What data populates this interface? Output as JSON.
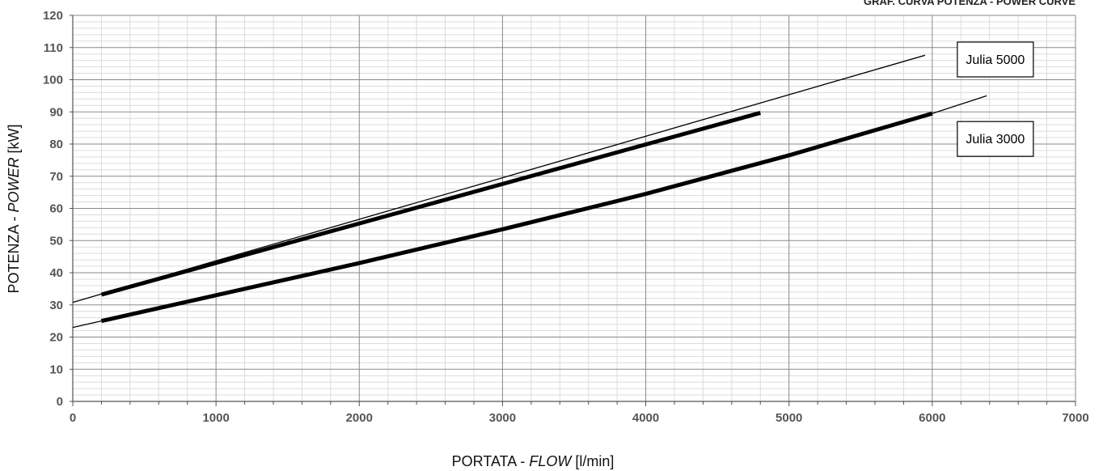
{
  "chart_data": {
    "type": "line",
    "title": "GRAF. CURVA POTENZA - POWER CURVE",
    "xlabel": {
      "main": "PORTATA - ",
      "italic": "FLOW",
      "unit": " [l/min]"
    },
    "ylabel": {
      "main": "POTENZA - ",
      "italic": "POWER",
      "unit": " [kW]"
    },
    "xlim": [
      0,
      7000
    ],
    "ylim": [
      0,
      120
    ],
    "x_ticks": [
      "0",
      "1000",
      "2000",
      "3000",
      "4000",
      "5000",
      "6000",
      "7000"
    ],
    "y_ticks": [
      "0",
      "10",
      "20",
      "30",
      "40",
      "50",
      "60",
      "70",
      "80",
      "90",
      "100",
      "110",
      "120"
    ],
    "grid": true,
    "series": [
      {
        "name": "Julia 5000",
        "color": "#000000",
        "extended_x": [
          0,
          5950
        ],
        "extended_y": [
          30.8,
          107.6
        ],
        "operating_x": [
          200,
          4800
        ],
        "operating_y": [
          33.2,
          89.7
        ]
      },
      {
        "name": "Julia 3000",
        "color": "#000000",
        "x": [
          0,
          200,
          1000,
          2000,
          3000,
          4000,
          5000,
          6000,
          6380
        ],
        "y": [
          23.0,
          25.0,
          33.0,
          43.0,
          53.5,
          64.5,
          76.5,
          89.5,
          95.0
        ],
        "operating_from": 200,
        "operating_to": 6000
      }
    ]
  }
}
